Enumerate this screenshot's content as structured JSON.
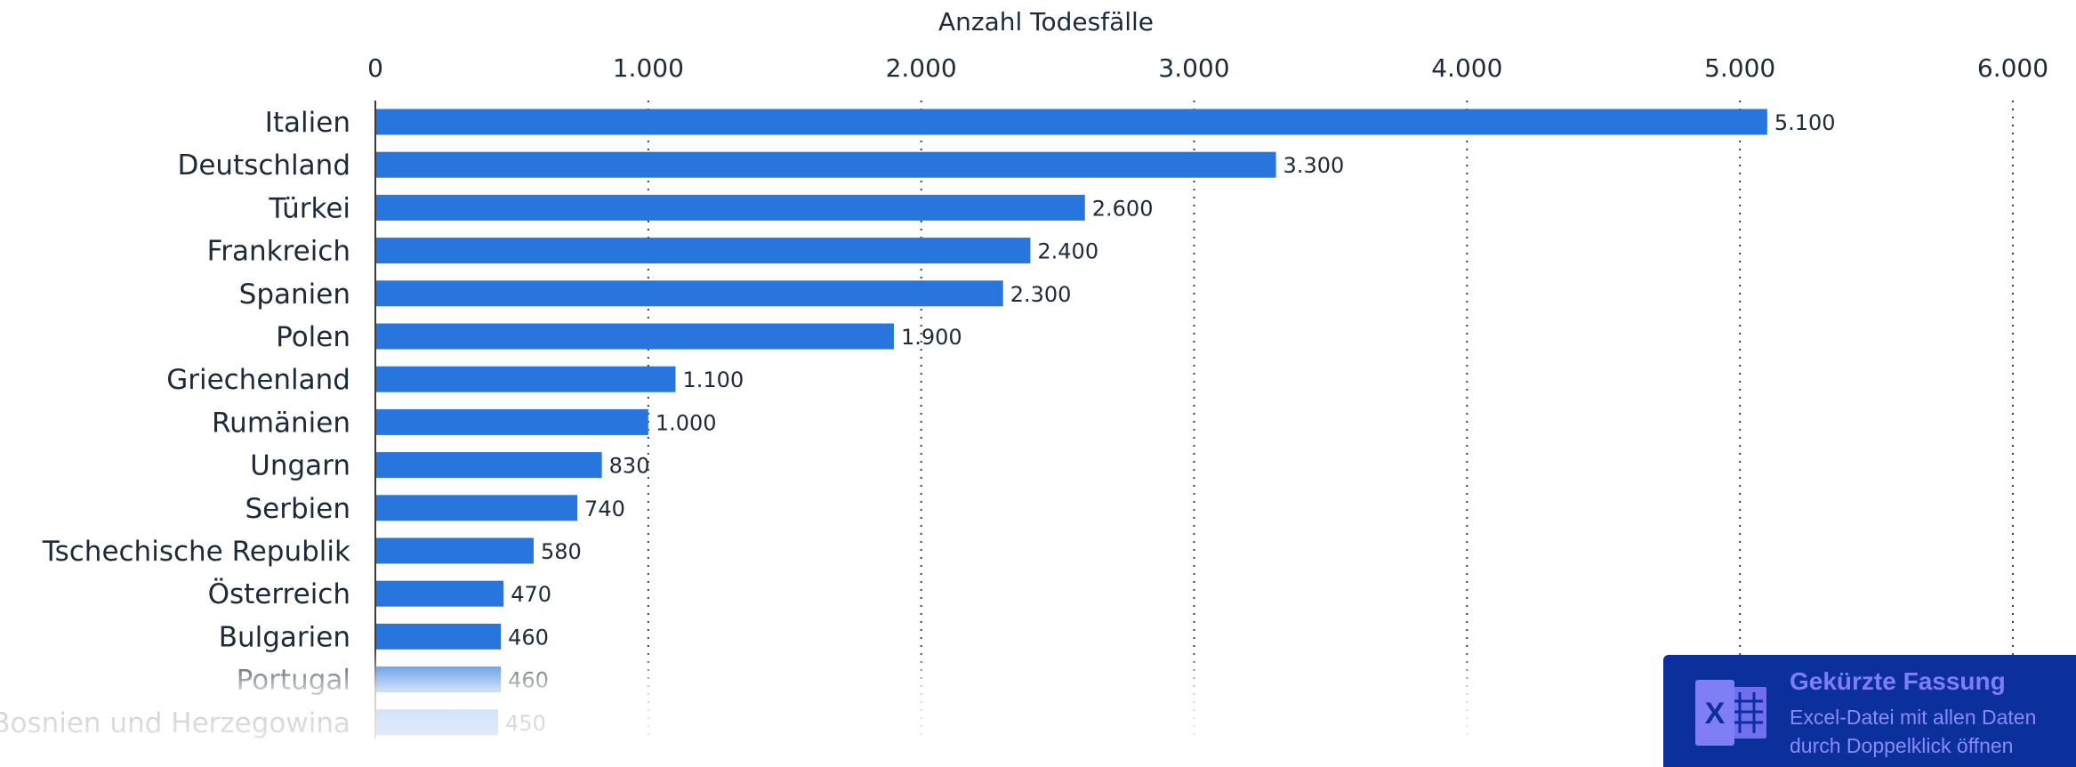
{
  "chart_data": {
    "type": "bar",
    "orientation": "horizontal",
    "xlabel": "Anzahl Todesfälle",
    "xlim": [
      0,
      6000
    ],
    "xticks": [
      0,
      1000,
      2000,
      3000,
      4000,
      5000,
      6000
    ],
    "xtick_labels": [
      "0",
      "1.000",
      "2.000",
      "3.000",
      "4.000",
      "5.000",
      "6.000"
    ],
    "grid": "vertical dotted",
    "categories": [
      "Italien",
      "Deutschland",
      "Türkei",
      "Frankreich",
      "Spanien",
      "Polen",
      "Griechenland",
      "Rumänien",
      "Ungarn",
      "Serbien",
      "Tschechische Republik",
      "Österreich",
      "Bulgarien",
      "Portugal",
      "Bosnien und Herzegowina"
    ],
    "values": [
      5100,
      3300,
      2600,
      2400,
      2300,
      1900,
      1100,
      1000,
      830,
      740,
      580,
      470,
      460,
      460,
      450
    ],
    "value_labels": [
      "5.100",
      "3.300",
      "2.600",
      "2.400",
      "2.300",
      "1.900",
      "1.100",
      "1.000",
      "830",
      "740",
      "580",
      "470",
      "460",
      "460",
      "450"
    ],
    "bar_color": "#2876dd"
  },
  "download_badge": {
    "title": "Gekürzte Fassung",
    "line1": "Excel-Datei mit allen Daten",
    "line2": "durch Doppelklick öffnen",
    "icon": "excel-icon",
    "icon_letter": "X",
    "background": "#0b2f9b"
  }
}
